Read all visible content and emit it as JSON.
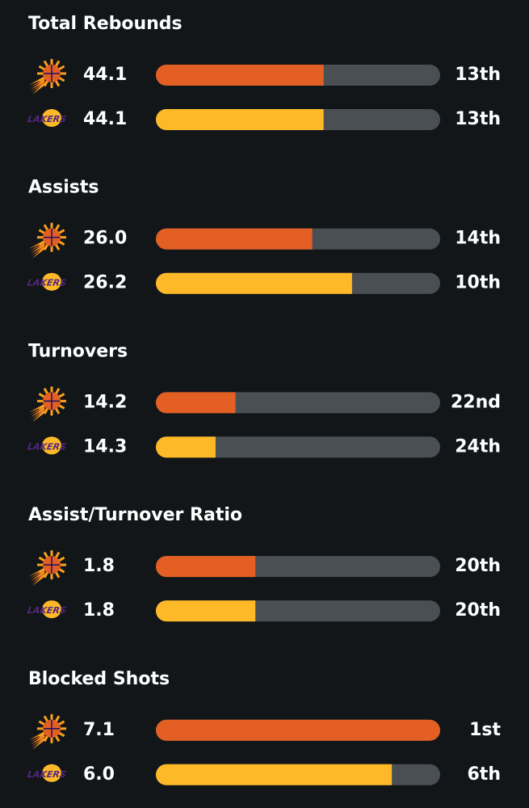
{
  "lakers_logo_text": "LAKERS",
  "sections": [
    {
      "title": "Total Rebounds",
      "rows": [
        {
          "value": "44.1",
          "rank": "13th",
          "bar_pct": 59
        },
        {
          "value": "44.1",
          "rank": "13th",
          "bar_pct": 59
        }
      ]
    },
    {
      "title": "Assists",
      "rows": [
        {
          "value": "26.0",
          "rank": "14th",
          "bar_pct": 55
        },
        {
          "value": "26.2",
          "rank": "10th",
          "bar_pct": 69
        }
      ]
    },
    {
      "title": "Turnovers",
      "rows": [
        {
          "value": "14.2",
          "rank": "22nd",
          "bar_pct": 28
        },
        {
          "value": "14.3",
          "rank": "24th",
          "bar_pct": 21
        }
      ]
    },
    {
      "title": "Assist/Turnover Ratio",
      "rows": [
        {
          "value": "1.8",
          "rank": "20th",
          "bar_pct": 35
        },
        {
          "value": "1.8",
          "rank": "20th",
          "bar_pct": 35
        }
      ]
    },
    {
      "title": "Blocked Shots",
      "rows": [
        {
          "value": "7.1",
          "rank": "1st",
          "bar_pct": 100
        },
        {
          "value": "6.0",
          "rank": "6th",
          "bar_pct": 83
        }
      ]
    }
  ]
}
